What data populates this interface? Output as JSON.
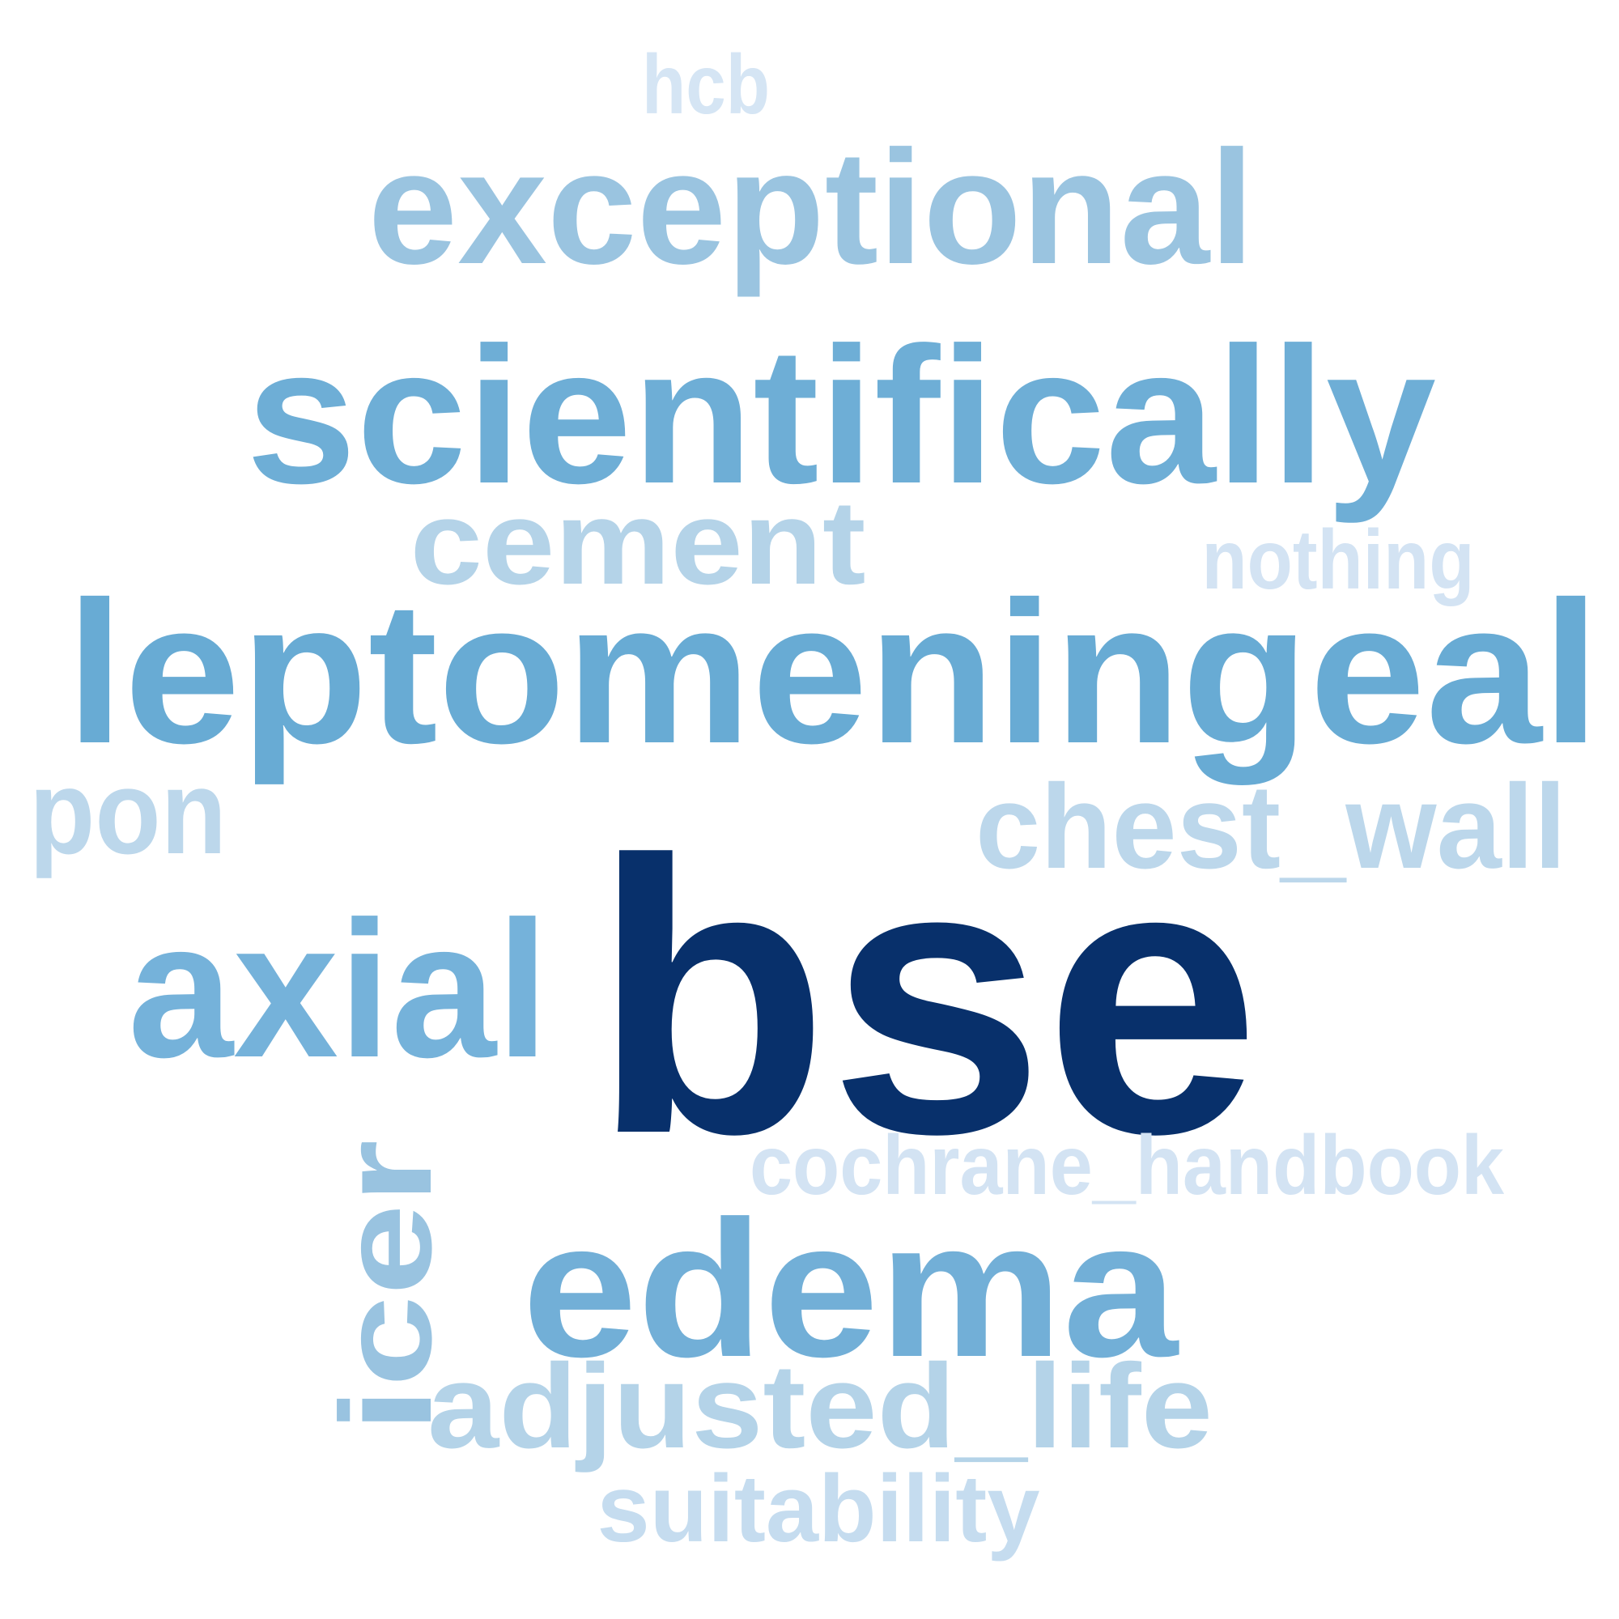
{
  "words": [
    {
      "id": "bse",
      "text": "bse",
      "color": "#08306b"
    },
    {
      "id": "leptomeningeal",
      "text": "leptomeningeal",
      "color": "#68abd4"
    },
    {
      "id": "scientifically",
      "text": "scientifically",
      "color": "#6eaed6"
    },
    {
      "id": "exceptional",
      "text": "exceptional",
      "color": "#9ac4e0"
    },
    {
      "id": "axial",
      "text": "axial",
      "color": "#75b2da"
    },
    {
      "id": "edema",
      "text": "edema",
      "color": "#72afd7"
    },
    {
      "id": "icer",
      "text": "icer",
      "color": "#99c3e0"
    },
    {
      "id": "adjusted-life",
      "text": "adjusted_life",
      "color": "#b4d3e8"
    },
    {
      "id": "cement",
      "text": "cement",
      "color": "#b4d3e8"
    },
    {
      "id": "chest-wall",
      "text": "chest_wall",
      "color": "#bcd7eb"
    },
    {
      "id": "pon",
      "text": "pon",
      "color": "#bcd7eb"
    },
    {
      "id": "suitability",
      "text": "suitability",
      "color": "#c5dcef"
    },
    {
      "id": "cochrane-handbook",
      "text": "cochrane_handbook",
      "color": "#d3e3f3"
    },
    {
      "id": "nothing",
      "text": "nothing",
      "color": "#d3e3f3"
    },
    {
      "id": "hcb",
      "text": "hcb",
      "color": "#d5e5f4"
    }
  ]
}
